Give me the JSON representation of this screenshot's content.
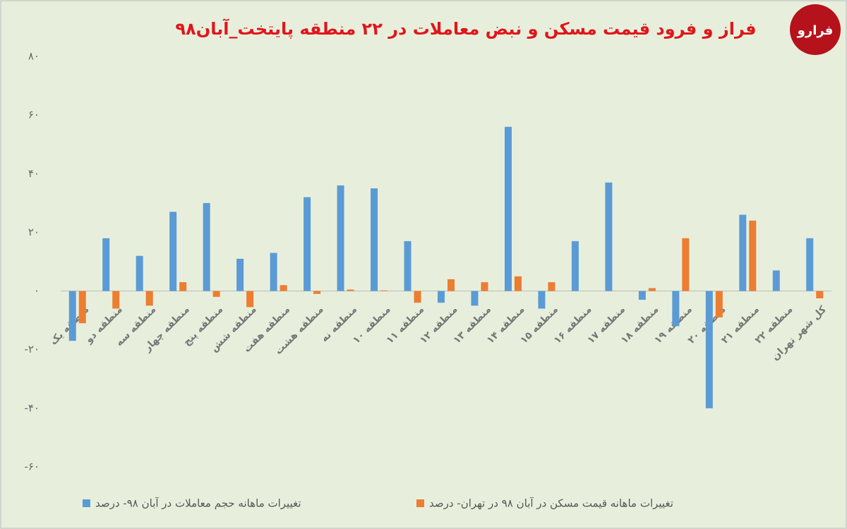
{
  "brand": "فرارو",
  "chart_data": {
    "type": "bar",
    "title": "فراز و فرود قیمت مسکن و نبض معاملات در ۲۲ منطقه پایتخت_آبان۹۸",
    "categories": [
      "منطقه یک",
      "منطقه دو",
      "منطقه سه",
      "منطقه چهار",
      "منطقه پنج",
      "منطقه شش",
      "منطقه هفت",
      "منطقه هشت",
      "منطقه نه",
      "منطقه ۱۰",
      "منطقه ۱۱",
      "منطقه ۱۲",
      "منطقه ۱۳",
      "منطقه ۱۴",
      "منطقه ۱۵",
      "منطقه ۱۶",
      "منطقه ۱۷",
      "منطقه ۱۸",
      "منطقه ۱۹",
      "منطقه ۲۰",
      "منطقه ۲۱",
      "منطقه ۲۲",
      "کل شهر تهران"
    ],
    "series": [
      {
        "name": "تغییرات ماهانه حجم معاملات در آبان ۹۸- درصد",
        "color": "#5b9bd5",
        "values": [
          -17,
          18,
          12,
          27,
          30,
          11,
          13,
          32,
          36,
          35,
          17,
          -4,
          -5,
          56,
          -6,
          17,
          37,
          -3,
          -12,
          -40,
          26,
          7,
          18
        ]
      },
      {
        "name": "تغییرات ماهانه قیمت مسکن در آبان ۹۸ در تهران- درصد",
        "color": "#ed7d31",
        "values": [
          -11,
          -6,
          -5,
          3,
          -2,
          -5.5,
          2,
          -1,
          0.5,
          0.2,
          -4,
          4,
          3,
          5,
          3,
          0,
          0,
          1,
          18,
          -9,
          24,
          0,
          -2.5
        ]
      }
    ],
    "ylim": [
      -60,
      80
    ],
    "yticks": [
      {
        "value": -60,
        "label": "-۶۰"
      },
      {
        "value": -40,
        "label": "-۴۰"
      },
      {
        "value": -20,
        "label": "-۲۰"
      },
      {
        "value": 0,
        "label": "۰"
      },
      {
        "value": 20,
        "label": "۲۰"
      },
      {
        "value": 40,
        "label": "۴۰"
      },
      {
        "value": 60,
        "label": "۶۰"
      },
      {
        "value": 80,
        "label": "۸۰"
      }
    ],
    "grid": false
  }
}
